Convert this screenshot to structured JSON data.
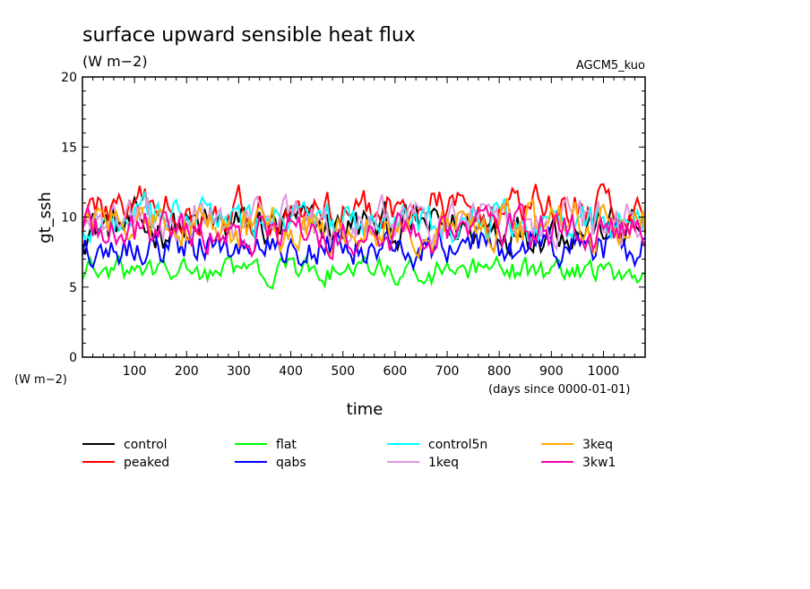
{
  "chart_data": {
    "type": "line",
    "title": "surface upward sensible heat flux",
    "units": "(W m−2)",
    "model": "AGCM5_kuo",
    "xlabel": "time",
    "x_units": "(days since 0000-01-01)",
    "ylabel": "gt_ssh",
    "y_units": "(W m−2)",
    "xlim": [
      0,
      1080
    ],
    "ylim": [
      0,
      20
    ],
    "x_ticks": [
      100,
      200,
      300,
      400,
      500,
      600,
      700,
      800,
      900,
      1000
    ],
    "y_ticks": [
      0,
      5,
      10,
      15,
      20
    ],
    "sample_interval_days": 5,
    "series": [
      {
        "name": "control",
        "color": "#000000",
        "mean": 9.3,
        "amp": 1.2
      },
      {
        "name": "peaked",
        "color": "#ff0000",
        "mean": 10.6,
        "amp": 1.1
      },
      {
        "name": "flat",
        "color": "#00ff00",
        "mean": 6.1,
        "amp": 0.7
      },
      {
        "name": "qabs",
        "color": "#0000ff",
        "mean": 7.9,
        "amp": 1.0
      },
      {
        "name": "control5n",
        "color": "#00ffff",
        "mean": 9.6,
        "amp": 1.1
      },
      {
        "name": "1keq",
        "color": "#dd99dd",
        "mean": 9.8,
        "amp": 1.2
      },
      {
        "name": "3keq",
        "color": "#ffaa00",
        "mean": 9.4,
        "amp": 1.2
      },
      {
        "name": "3kw1",
        "color": "#ff00aa",
        "mean": 8.9,
        "amp": 1.1
      }
    ]
  }
}
